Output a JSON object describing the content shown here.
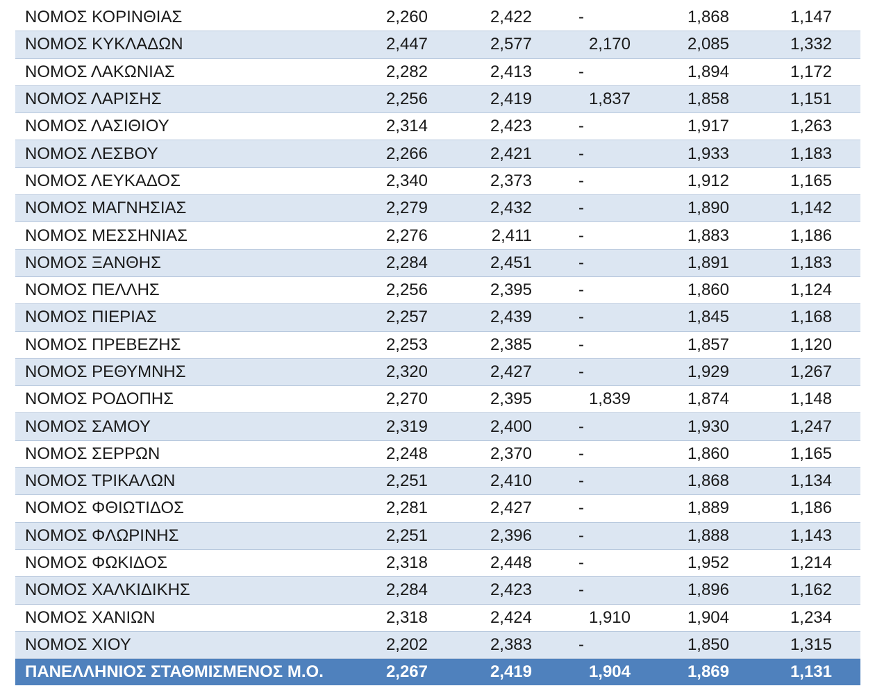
{
  "rows": [
    {
      "name": "ΝΟΜΟΣ ΚΟΡΙΝΘΙΑΣ",
      "v1": "2,260",
      "v2": "2,422",
      "v3": "-",
      "v4": "1,868",
      "v5": "1,147"
    },
    {
      "name": "ΝΟΜΟΣ ΚΥΚΛΑΔΩΝ",
      "v1": "2,447",
      "v2": "2,577",
      "v3": "2,170",
      "v4": "2,085",
      "v5": "1,332"
    },
    {
      "name": "ΝΟΜΟΣ ΛΑΚΩΝΙΑΣ",
      "v1": "2,282",
      "v2": "2,413",
      "v3": "-",
      "v4": "1,894",
      "v5": "1,172"
    },
    {
      "name": "ΝΟΜΟΣ ΛΑΡΙΣΗΣ",
      "v1": "2,256",
      "v2": "2,419",
      "v3": "1,837",
      "v4": "1,858",
      "v5": "1,151"
    },
    {
      "name": "ΝΟΜΟΣ ΛΑΣΙΘΙΟΥ",
      "v1": "2,314",
      "v2": "2,423",
      "v3": "-",
      "v4": "1,917",
      "v5": "1,263"
    },
    {
      "name": "ΝΟΜΟΣ ΛΕΣΒΟΥ",
      "v1": "2,266",
      "v2": "2,421",
      "v3": "-",
      "v4": "1,933",
      "v5": "1,183"
    },
    {
      "name": "ΝΟΜΟΣ ΛΕΥΚΑΔΟΣ",
      "v1": "2,340",
      "v2": "2,373",
      "v3": "-",
      "v4": "1,912",
      "v5": "1,165"
    },
    {
      "name": "ΝΟΜΟΣ ΜΑΓΝΗΣΙΑΣ",
      "v1": "2,279",
      "v2": "2,432",
      "v3": "-",
      "v4": "1,890",
      "v5": "1,142"
    },
    {
      "name": "ΝΟΜΟΣ ΜΕΣΣΗΝΙΑΣ",
      "v1": "2,276",
      "v2": "2,411",
      "v3": "-",
      "v4": "1,883",
      "v5": "1,186"
    },
    {
      "name": "ΝΟΜΟΣ ΞΑΝΘΗΣ",
      "v1": "2,284",
      "v2": "2,451",
      "v3": "-",
      "v4": "1,891",
      "v5": "1,183"
    },
    {
      "name": "ΝΟΜΟΣ ΠΕΛΛΗΣ",
      "v1": "2,256",
      "v2": "2,395",
      "v3": "-",
      "v4": "1,860",
      "v5": "1,124"
    },
    {
      "name": "ΝΟΜΟΣ ΠΙΕΡΙΑΣ",
      "v1": "2,257",
      "v2": "2,439",
      "v3": "-",
      "v4": "1,845",
      "v5": "1,168"
    },
    {
      "name": "ΝΟΜΟΣ ΠΡΕΒΕΖΗΣ",
      "v1": "2,253",
      "v2": "2,385",
      "v3": "-",
      "v4": "1,857",
      "v5": "1,120"
    },
    {
      "name": "ΝΟΜΟΣ ΡΕΘΥΜΝΗΣ",
      "v1": "2,320",
      "v2": "2,427",
      "v3": "-",
      "v4": "1,929",
      "v5": "1,267"
    },
    {
      "name": "ΝΟΜΟΣ ΡΟΔΟΠΗΣ",
      "v1": "2,270",
      "v2": "2,395",
      "v3": "1,839",
      "v4": "1,874",
      "v5": "1,148"
    },
    {
      "name": "ΝΟΜΟΣ ΣΑΜΟΥ",
      "v1": "2,319",
      "v2": "2,400",
      "v3": "-",
      "v4": "1,930",
      "v5": "1,247"
    },
    {
      "name": "ΝΟΜΟΣ ΣΕΡΡΩΝ",
      "v1": "2,248",
      "v2": "2,370",
      "v3": "-",
      "v4": "1,860",
      "v5": "1,165"
    },
    {
      "name": "ΝΟΜΟΣ ΤΡΙΚΑΛΩΝ",
      "v1": "2,251",
      "v2": "2,410",
      "v3": "-",
      "v4": "1,868",
      "v5": "1,134"
    },
    {
      "name": "ΝΟΜΟΣ ΦΘΙΩΤΙΔΟΣ",
      "v1": "2,281",
      "v2": "2,427",
      "v3": "-",
      "v4": "1,889",
      "v5": "1,186"
    },
    {
      "name": "ΝΟΜΟΣ ΦΛΩΡΙΝΗΣ",
      "v1": "2,251",
      "v2": "2,396",
      "v3": "-",
      "v4": "1,888",
      "v5": "1,143"
    },
    {
      "name": "ΝΟΜΟΣ ΦΩΚΙΔΟΣ",
      "v1": "2,318",
      "v2": "2,448",
      "v3": "-",
      "v4": "1,952",
      "v5": "1,214"
    },
    {
      "name": "ΝΟΜΟΣ ΧΑΛΚΙΔΙΚΗΣ",
      "v1": "2,284",
      "v2": "2,423",
      "v3": "-",
      "v4": "1,896",
      "v5": "1,162"
    },
    {
      "name": "ΝΟΜΟΣ ΧΑΝΙΩΝ",
      "v1": "2,318",
      "v2": "2,424",
      "v3": "1,910",
      "v4": "1,904",
      "v5": "1,234"
    },
    {
      "name": "ΝΟΜΟΣ ΧΙΟΥ",
      "v1": "2,202",
      "v2": "2,383",
      "v3": "-",
      "v4": "1,850",
      "v5": "1,315"
    }
  ],
  "total": {
    "name": "ΠΑΝΕΛΛΗΝΙΟΣ ΣΤΑΘΜΙΣΜΕΝΟΣ Μ.Ο.",
    "v1": "2,267",
    "v2": "2,419",
    "v3": "1,904",
    "v4": "1,869",
    "v5": "1,131"
  },
  "colors": {
    "stripe": "#dce6f2",
    "total_bg": "#4f81bd",
    "total_text": "#ffffff"
  }
}
